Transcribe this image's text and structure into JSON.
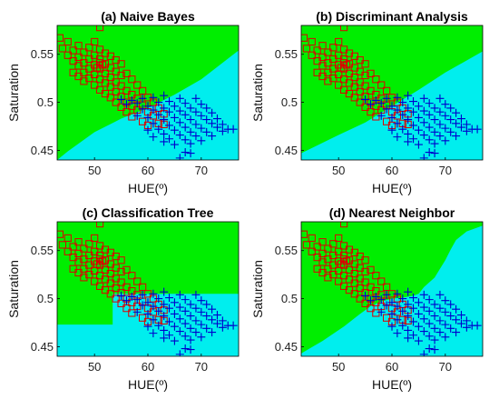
{
  "region_colors": {
    "class_1": "#00ee00",
    "class_2": "#00eeee"
  },
  "marker_colors": {
    "class_1": "#dd0000",
    "class_2": "#0000cc"
  },
  "marker_shapes": {
    "class_1": "square",
    "class_2": "plus"
  },
  "chart_data": [
    {
      "type": "scatter",
      "title": "(a) Naive Bayes",
      "xlabel": "HUE(º)",
      "ylabel": "Saturation",
      "xlim": [
        43,
        77
      ],
      "ylim": [
        0.44,
        0.58
      ],
      "xticks": [
        50,
        60,
        70
      ],
      "yticks": [
        0.45,
        0.5,
        0.55
      ],
      "grid": false,
      "legend": "none",
      "boundary": [
        [
          43,
          0.44
        ],
        [
          45,
          0.449
        ],
        [
          50,
          0.469
        ],
        [
          55,
          0.483
        ],
        [
          60,
          0.494
        ],
        [
          65,
          0.508
        ],
        [
          70,
          0.524
        ],
        [
          77,
          0.554
        ]
      ]
    },
    {
      "type": "scatter",
      "title": "(b) Discriminant Analysis",
      "xlabel": "HUE(º)",
      "ylabel": "Saturation",
      "xlim": [
        43,
        77
      ],
      "ylim": [
        0.44,
        0.58
      ],
      "xticks": [
        50,
        60,
        70
      ],
      "yticks": [
        0.45,
        0.5,
        0.55
      ],
      "grid": false,
      "legend": "none",
      "boundary": [
        [
          43,
          0.447
        ],
        [
          50,
          0.466
        ],
        [
          55,
          0.479
        ],
        [
          60,
          0.496
        ],
        [
          65,
          0.513
        ],
        [
          70,
          0.531
        ],
        [
          77,
          0.553
        ]
      ]
    },
    {
      "type": "scatter",
      "title": "(c) Classification Tree",
      "xlabel": "HUE(º)",
      "ylabel": "Saturation",
      "xlim": [
        43,
        77
      ],
      "ylim": [
        0.44,
        0.58
      ],
      "xticks": [
        50,
        60,
        70
      ],
      "yticks": [
        0.45,
        0.5,
        0.55
      ],
      "grid": false,
      "legend": "none",
      "boundary": [
        [
          43,
          0.473
        ],
        [
          53.4,
          0.473
        ],
        [
          53.4,
          0.505
        ],
        [
          77,
          0.505
        ]
      ]
    },
    {
      "type": "scatter",
      "title": "(d) Nearest Neighbor",
      "xlabel": "HUE(º)",
      "ylabel": "Saturation",
      "xlim": [
        43,
        77
      ],
      "ylim": [
        0.44,
        0.58
      ],
      "xticks": [
        50,
        60,
        70
      ],
      "yticks": [
        0.45,
        0.5,
        0.55
      ],
      "grid": false,
      "legend": "none",
      "boundary": [
        [
          43,
          0.443
        ],
        [
          47,
          0.456
        ],
        [
          51,
          0.471
        ],
        [
          54,
          0.484
        ],
        [
          56,
          0.492
        ],
        [
          58,
          0.497
        ],
        [
          60,
          0.5
        ],
        [
          62,
          0.501
        ],
        [
          64,
          0.503
        ],
        [
          65,
          0.505
        ],
        [
          66,
          0.512
        ],
        [
          68,
          0.522
        ],
        [
          69,
          0.531
        ],
        [
          70,
          0.54
        ],
        [
          71,
          0.551
        ],
        [
          72,
          0.561
        ],
        [
          74,
          0.57
        ],
        [
          77,
          0.576
        ]
      ]
    }
  ],
  "scatter_points": {
    "class_1": [
      [
        43.5,
        0.567
      ],
      [
        44,
        0.556
      ],
      [
        45,
        0.563
      ],
      [
        45,
        0.549
      ],
      [
        46,
        0.554
      ],
      [
        46,
        0.543
      ],
      [
        47,
        0.559
      ],
      [
        47,
        0.547
      ],
      [
        47,
        0.538
      ],
      [
        48,
        0.552
      ],
      [
        48,
        0.541
      ],
      [
        48,
        0.531
      ],
      [
        48,
        0.522
      ],
      [
        49,
        0.557
      ],
      [
        49,
        0.545
      ],
      [
        49,
        0.535
      ],
      [
        49,
        0.525
      ],
      [
        50,
        0.563
      ],
      [
        50,
        0.549
      ],
      [
        50,
        0.539
      ],
      [
        50,
        0.529
      ],
      [
        50,
        0.518
      ],
      [
        51,
        0.578
      ],
      [
        51,
        0.555
      ],
      [
        51,
        0.545
      ],
      [
        51,
        0.535
      ],
      [
        51,
        0.524
      ],
      [
        51,
        0.513
      ],
      [
        52,
        0.551
      ],
      [
        52,
        0.54
      ],
      [
        52,
        0.53
      ],
      [
        52,
        0.52
      ],
      [
        52,
        0.509
      ],
      [
        53,
        0.548
      ],
      [
        53,
        0.536
      ],
      [
        53,
        0.526
      ],
      [
        53,
        0.516
      ],
      [
        53,
        0.505
      ],
      [
        54,
        0.544
      ],
      [
        54,
        0.532
      ],
      [
        54,
        0.521
      ],
      [
        54,
        0.511
      ],
      [
        54,
        0.5
      ],
      [
        55,
        0.54
      ],
      [
        55,
        0.528
      ],
      [
        55,
        0.517
      ],
      [
        55,
        0.506
      ],
      [
        55,
        0.495
      ],
      [
        56,
        0.53
      ],
      [
        56,
        0.512
      ],
      [
        56,
        0.5
      ],
      [
        56,
        0.49
      ],
      [
        57,
        0.524
      ],
      [
        57,
        0.508
      ],
      [
        57,
        0.496
      ],
      [
        57,
        0.485
      ],
      [
        58,
        0.518
      ],
      [
        58,
        0.504
      ],
      [
        58,
        0.492
      ],
      [
        59,
        0.512
      ],
      [
        59,
        0.497
      ],
      [
        59,
        0.48
      ],
      [
        60,
        0.505
      ],
      [
        60,
        0.49
      ],
      [
        60,
        0.476
      ],
      [
        61,
        0.5
      ],
      [
        61,
        0.486
      ],
      [
        62,
        0.494
      ],
      [
        62,
        0.478
      ],
      [
        63,
        0.488
      ],
      [
        63,
        0.477
      ],
      [
        51,
        0.541
      ],
      [
        51.5,
        0.539
      ],
      [
        50.5,
        0.536
      ],
      [
        46,
        0.531
      ],
      [
        47,
        0.527
      ]
    ],
    "class_2": [
      [
        55,
        0.503
      ],
      [
        56,
        0.498
      ],
      [
        57,
        0.502
      ],
      [
        58,
        0.499
      ],
      [
        58,
        0.486
      ],
      [
        59,
        0.493
      ],
      [
        59,
        0.504
      ],
      [
        60,
        0.496
      ],
      [
        60,
        0.484
      ],
      [
        60,
        0.471
      ],
      [
        61,
        0.492
      ],
      [
        61,
        0.478
      ],
      [
        61,
        0.505
      ],
      [
        62,
        0.487
      ],
      [
        62,
        0.472
      ],
      [
        62,
        0.5
      ],
      [
        63,
        0.494
      ],
      [
        63,
        0.482
      ],
      [
        63,
        0.467
      ],
      [
        63,
        0.507
      ],
      [
        64,
        0.49
      ],
      [
        64,
        0.476
      ],
      [
        64,
        0.462
      ],
      [
        64,
        0.501
      ],
      [
        65,
        0.496
      ],
      [
        65,
        0.484
      ],
      [
        65,
        0.471
      ],
      [
        65,
        0.456
      ],
      [
        66,
        0.491
      ],
      [
        66,
        0.479
      ],
      [
        66,
        0.466
      ],
      [
        66,
        0.504
      ],
      [
        67,
        0.487
      ],
      [
        67,
        0.474
      ],
      [
        67,
        0.461
      ],
      [
        67,
        0.499
      ],
      [
        67,
        0.448
      ],
      [
        68,
        0.494
      ],
      [
        68,
        0.482
      ],
      [
        68,
        0.469
      ],
      [
        68,
        0.457
      ],
      [
        69,
        0.49
      ],
      [
        69,
        0.477
      ],
      [
        69,
        0.465
      ],
      [
        69,
        0.504
      ],
      [
        70,
        0.486
      ],
      [
        70,
        0.473
      ],
      [
        70,
        0.46
      ],
      [
        70,
        0.498
      ],
      [
        71,
        0.482
      ],
      [
        71,
        0.469
      ],
      [
        71,
        0.494
      ],
      [
        72,
        0.478
      ],
      [
        72,
        0.465
      ],
      [
        72,
        0.489
      ],
      [
        73,
        0.474
      ],
      [
        73,
        0.483
      ],
      [
        74,
        0.47
      ],
      [
        74,
        0.477
      ],
      [
        75,
        0.472
      ],
      [
        76,
        0.472
      ],
      [
        66,
        0.442
      ],
      [
        68,
        0.447
      ],
      [
        61,
        0.464
      ],
      [
        63,
        0.459
      ]
    ]
  }
}
